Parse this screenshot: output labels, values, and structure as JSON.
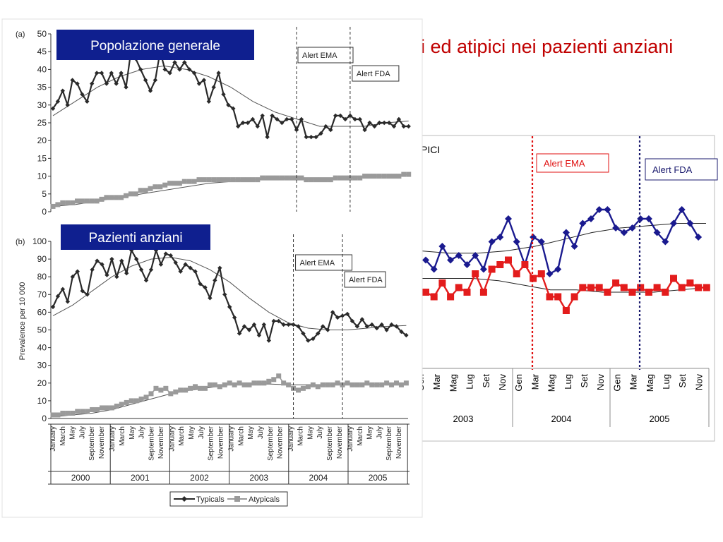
{
  "slide": {
    "title_visible": "i ed atipici nei pazienti anziani",
    "title_color": "#c00000",
    "banner_color": "#0f1f8f"
  },
  "chart_data": [
    {
      "id": "a",
      "type": "line",
      "panel_label": "(a)",
      "banner": "Popolazione generale",
      "ylabel": "",
      "ylim": [
        0,
        50
      ],
      "yticks": [
        0,
        5,
        10,
        15,
        20,
        25,
        30,
        35,
        40,
        45,
        50
      ],
      "x_start": "2000-01",
      "grid": false,
      "annotations": [
        {
          "label": "Alert EMA",
          "month_index": 50
        },
        {
          "label": "Alert FDA",
          "month_index": 61
        }
      ],
      "series": [
        {
          "values": [
            29,
            31,
            34,
            30,
            37,
            36,
            33,
            31,
            36,
            39,
            39,
            36,
            39,
            36,
            39,
            35,
            45,
            43,
            40,
            37,
            34,
            37,
            45,
            40,
            39,
            42,
            40,
            42,
            40,
            39,
            36,
            37,
            31,
            35,
            39,
            33,
            30,
            29,
            24,
            25,
            25,
            26,
            24,
            27,
            21,
            27,
            26,
            25,
            26,
            26,
            23,
            26,
            21,
            21,
            21,
            22,
            24,
            23,
            27,
            27,
            26,
            27,
            26,
            26,
            23,
            25,
            24,
            25,
            25,
            25,
            24,
            26,
            24,
            24
          ],
          "color": "#2a2a2a",
          "marker": "diamond"
        },
        {
          "values": [
            1.5,
            2,
            2.5,
            2.5,
            2.5,
            3,
            3,
            3,
            3,
            3,
            3.5,
            4,
            4,
            4,
            4,
            4.5,
            5,
            5,
            6,
            6,
            6.5,
            7,
            7,
            7.5,
            8,
            8,
            8,
            8.5,
            8.5,
            8.5,
            9,
            9,
            9,
            9,
            9,
            9,
            9,
            9,
            9,
            9,
            9,
            9,
            9,
            9.5,
            9.5,
            9.5,
            9.5,
            9.5,
            9.5,
            9.5,
            9.5,
            9.5,
            9,
            9,
            9,
            9,
            9,
            9,
            9.5,
            9.5,
            9.5,
            9.5,
            9.5,
            9.5,
            10,
            10,
            10,
            10,
            10,
            10,
            10,
            10,
            10.5,
            10.5
          ],
          "color": "#9a9a9a",
          "marker": "square"
        }
      ],
      "trends": [
        {
          "values": [
            27,
            31,
            35,
            38,
            40,
            41,
            40,
            38,
            35,
            31,
            28,
            26,
            24,
            24,
            24,
            25,
            25.5
          ],
          "color": "#555555"
        },
        {
          "values": [
            1.5,
            2,
            3,
            4,
            5,
            6,
            7,
            8,
            8.5,
            9,
            9,
            9.5,
            9.5,
            9.5,
            10,
            10,
            10.5
          ],
          "color": "#555555"
        }
      ]
    },
    {
      "id": "b",
      "type": "line",
      "panel_label": "(b)",
      "banner": "Pazienti anziani",
      "ylabel": "Prevalence per 10 000",
      "ylim": [
        0,
        100
      ],
      "yticks": [
        0,
        10,
        20,
        30,
        40,
        50,
        60,
        70,
        80,
        90,
        100
      ],
      "x_start": "2000-01",
      "grid": false,
      "annotations": [
        {
          "label": "Alert EMA",
          "month_index": 49
        },
        {
          "label": "Alert FDA",
          "month_index": 59
        }
      ],
      "series": [
        {
          "name": "Typicals",
          "values": [
            63,
            69,
            73,
            66,
            80,
            83,
            72,
            70,
            84,
            89,
            87,
            81,
            90,
            80,
            89,
            82,
            95,
            90,
            84,
            78,
            84,
            95,
            87,
            93,
            92,
            88,
            83,
            87,
            85,
            83,
            76,
            74,
            68,
            78,
            85,
            70,
            63,
            57,
            48,
            52,
            50,
            53,
            47,
            53,
            44,
            55,
            55,
            53,
            53,
            53,
            52,
            48,
            44,
            45,
            48,
            52,
            50,
            60,
            57,
            58,
            59,
            55,
            52,
            56,
            52,
            53,
            51,
            53,
            50,
            53,
            52,
            49,
            47
          ],
          "color": "#2a2a2a",
          "marker": "diamond"
        },
        {
          "name": "Atypicals",
          "values": [
            2,
            2,
            3,
            3,
            3,
            4,
            4,
            4,
            5,
            5,
            6,
            6,
            6,
            7,
            8,
            9,
            10,
            10,
            11,
            12,
            14,
            17,
            16,
            17,
            14,
            15,
            16,
            16,
            17,
            18,
            17,
            17,
            19,
            19,
            18,
            19,
            20,
            19,
            20,
            19,
            19,
            20,
            20,
            20,
            21,
            22,
            24,
            20,
            19,
            17,
            16,
            17,
            18,
            19,
            18,
            19,
            19,
            19,
            20,
            19,
            20,
            19,
            19,
            19,
            20,
            19,
            19,
            19,
            20,
            19,
            20,
            19,
            20
          ],
          "color": "#9a9a9a",
          "marker": "square"
        }
      ],
      "trends": [
        {
          "values": [
            58,
            64,
            72,
            80,
            86,
            90,
            91,
            89,
            84,
            77,
            68,
            60,
            54,
            51,
            50,
            50,
            51,
            52,
            52.5
          ],
          "color": "#555555"
        },
        {
          "values": [
            1,
            2,
            3,
            5,
            8,
            11,
            14,
            16,
            17.5,
            19,
            19.5,
            19.5,
            19,
            19,
            19,
            19,
            19,
            19.5,
            19.5
          ],
          "color": "#555555"
        }
      ],
      "legend": {
        "typicals": "Typicals",
        "atypicals": "Atypicals"
      },
      "month_labels": [
        "January",
        "March",
        "May",
        "July",
        "September",
        "November"
      ],
      "years": [
        "2000",
        "2001",
        "2002",
        "2003",
        "2004",
        "2005"
      ]
    },
    {
      "id": "c",
      "type": "line",
      "title_partial": "PICI",
      "x_start": "2003-01",
      "grid": false,
      "tick_labels": [
        "Gen",
        "Mar",
        "Mag",
        "Lug",
        "Set",
        "Nov"
      ],
      "first_tick_partial": "Gen",
      "years": [
        "2003",
        "2004",
        "2005"
      ],
      "annotations": [
        {
          "label": "Alert EMA",
          "month_index": 14,
          "color": "#e01010"
        },
        {
          "label": "Alert FDA",
          "month_index": 25,
          "color": "#1a1a6e"
        }
      ],
      "series": [
        {
          "values": [
            91,
            89,
            94,
            91,
            92,
            90,
            92,
            89,
            95,
            96,
            100,
            95,
            90,
            96,
            95,
            88,
            89,
            97,
            94,
            99,
            100,
            102,
            102,
            98,
            97,
            98,
            100,
            100,
            97,
            95,
            99,
            102,
            99,
            96
          ],
          "color": "#1a1a8f",
          "marker": "diamond"
        },
        {
          "values": [
            84,
            83,
            86,
            83,
            85,
            84,
            88,
            84,
            89,
            90,
            91,
            88,
            90,
            87,
            88,
            83,
            83,
            80,
            83,
            85,
            85,
            85,
            84,
            86,
            85,
            84,
            85,
            84,
            85,
            84,
            87,
            85,
            86,
            85,
            85
          ],
          "color": "#e31c1c",
          "marker": "square"
        }
      ],
      "trends": [
        {
          "values": [
            93,
            92.5,
            92.5,
            93,
            94,
            95.5,
            97,
            98,
            98.5,
            99,
            99
          ],
          "color": "#222222"
        },
        {
          "values": [
            87,
            87,
            87,
            86.5,
            85.5,
            84.5,
            84.5,
            84,
            84,
            84,
            84.5,
            85
          ],
          "color": "#222222"
        }
      ]
    }
  ]
}
